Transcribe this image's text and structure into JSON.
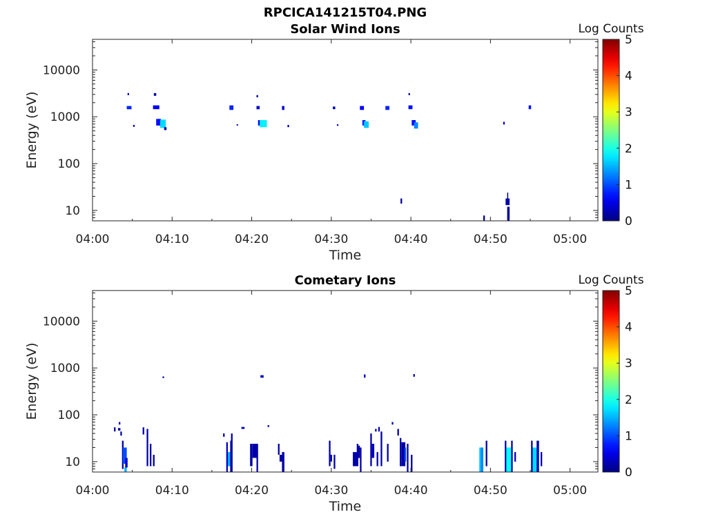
{
  "figure": {
    "title": "RPCICA141215T04.PNG"
  },
  "chart_data": [
    {
      "type": "heatmap",
      "title": "Solar Wind Ions",
      "xlabel": "Time",
      "ylabel": "Energy (eV)",
      "x_unit": "minutes after 04:00",
      "xlim": [
        0,
        63.5
      ],
      "x_ticks": [
        0,
        10,
        20,
        30,
        40,
        50,
        60
      ],
      "x_tick_labels": [
        "04:00",
        "04:10",
        "04:20",
        "04:30",
        "04:40",
        "04:50",
        "05:00"
      ],
      "y_scale": "log",
      "ylim": [
        6,
        45000
      ],
      "y_ticks": [
        10,
        100,
        1000,
        10000
      ],
      "y_tick_labels": [
        "10",
        "100",
        "1000",
        "10000"
      ],
      "colorbar": {
        "label": "Log Counts",
        "range": [
          0,
          5
        ],
        "ticks": [
          "0",
          "1",
          "2",
          "3",
          "4",
          "5"
        ]
      },
      "cells": [
        [
          4.4,
          4.6,
          2900,
          3200,
          0.2
        ],
        [
          4.3,
          4.9,
          1450,
          1700,
          0.8
        ],
        [
          5.1,
          5.3,
          610,
          670,
          0.2
        ],
        [
          7.7,
          8.0,
          2800,
          3200,
          0.2
        ],
        [
          7.6,
          8.4,
          1450,
          1750,
          0.6
        ],
        [
          8.0,
          8.6,
          650,
          900,
          0.7
        ],
        [
          8.5,
          9.2,
          580,
          870,
          1.7
        ],
        [
          9.0,
          9.3,
          520,
          600,
          0.2
        ],
        [
          17.2,
          17.7,
          1400,
          1750,
          0.8
        ],
        [
          18.1,
          18.3,
          650,
          690,
          0.2
        ],
        [
          20.6,
          20.8,
          2600,
          2900,
          0.2
        ],
        [
          20.6,
          21.0,
          1450,
          1700,
          0.4
        ],
        [
          20.8,
          21.2,
          650,
          850,
          0.6
        ],
        [
          21.0,
          21.9,
          600,
          850,
          1.8
        ],
        [
          23.8,
          24.1,
          1400,
          1700,
          0.4
        ],
        [
          24.5,
          24.7,
          600,
          670,
          0.2
        ],
        [
          30.2,
          30.5,
          1450,
          1650,
          0.3
        ],
        [
          30.7,
          30.9,
          640,
          690,
          0.2
        ],
        [
          33.6,
          34.1,
          1400,
          1700,
          0.6
        ],
        [
          33.9,
          34.3,
          650,
          850,
          0.8
        ],
        [
          34.1,
          34.7,
          580,
          800,
          1.6
        ],
        [
          36.8,
          37.3,
          1400,
          1700,
          0.8
        ],
        [
          39.7,
          39.9,
          2900,
          3200,
          0.2
        ],
        [
          39.7,
          40.2,
          1450,
          1750,
          0.7
        ],
        [
          40.1,
          40.6,
          650,
          850,
          0.7
        ],
        [
          40.4,
          40.9,
          560,
          760,
          1.3
        ],
        [
          38.7,
          38.9,
          14,
          18,
          0.1
        ],
        [
          49.1,
          49.3,
          6,
          7.8,
          0.1
        ],
        [
          51.6,
          51.8,
          680,
          780,
          0.4
        ],
        [
          52.1,
          52.2,
          18,
          24,
          0.1
        ],
        [
          51.9,
          52.4,
          13,
          18,
          0.2
        ],
        [
          52.1,
          52.4,
          6,
          12,
          0.1
        ],
        [
          54.8,
          55.1,
          1450,
          1750,
          0.7
        ]
      ]
    },
    {
      "type": "heatmap",
      "title": "Cometary Ions",
      "xlabel": "Time",
      "ylabel": "Energy (eV)",
      "x_unit": "minutes after 04:00",
      "xlim": [
        0,
        63.5
      ],
      "x_ticks": [
        0,
        10,
        20,
        30,
        40,
        50,
        60
      ],
      "x_tick_labels": [
        "04:00",
        "04:10",
        "04:20",
        "04:30",
        "04:40",
        "04:50",
        "05:00"
      ],
      "y_scale": "log",
      "ylim": [
        6,
        45000
      ],
      "y_ticks": [
        10,
        100,
        1000,
        10000
      ],
      "y_tick_labels": [
        "10",
        "100",
        "1000",
        "10000"
      ],
      "colorbar": {
        "label": "Log Counts",
        "range": [
          0,
          5
        ],
        "ticks": [
          "0",
          "1",
          "2",
          "3",
          "4",
          "5"
        ]
      },
      "cells": [
        [
          8.8,
          9.0,
          610,
          660,
          0.2
        ],
        [
          21.1,
          21.5,
          620,
          700,
          0.3
        ],
        [
          34.1,
          34.3,
          620,
          730,
          0.3
        ],
        [
          40.3,
          40.5,
          650,
          740,
          0.2
        ],
        [
          2.7,
          2.9,
          44,
          54,
          0.2
        ],
        [
          3.3,
          3.5,
          62,
          70,
          0.2
        ],
        [
          3.2,
          3.5,
          46,
          52,
          0.2
        ],
        [
          3.5,
          3.7,
          36,
          44,
          0.2
        ],
        [
          3.7,
          3.9,
          7,
          28,
          0.2
        ],
        [
          3.8,
          4.3,
          9,
          20,
          1.0
        ],
        [
          4.0,
          4.3,
          6,
          7.5,
          1.5
        ],
        [
          4.1,
          4.4,
          7.5,
          12,
          0.4
        ],
        [
          6.3,
          6.5,
          38,
          54,
          0.2
        ],
        [
          6.8,
          7.0,
          8,
          50,
          0.2
        ],
        [
          7.2,
          7.4,
          8,
          24,
          0.2
        ],
        [
          7.6,
          7.8,
          8,
          14,
          0.2
        ],
        [
          16.4,
          16.6,
          34,
          40,
          0.2
        ],
        [
          16.8,
          17.0,
          6,
          26,
          0.3
        ],
        [
          17.0,
          17.3,
          8,
          16,
          1.5
        ],
        [
          17.3,
          17.5,
          6,
          28,
          0.2
        ],
        [
          17.4,
          17.6,
          6,
          40,
          0.2
        ],
        [
          18.7,
          19.1,
          50,
          55,
          0.3
        ],
        [
          19.8,
          20.1,
          8,
          24,
          0.2
        ],
        [
          20.1,
          20.6,
          12,
          24,
          0.2
        ],
        [
          20.6,
          20.8,
          6,
          24,
          0.2
        ],
        [
          22.0,
          22.2,
          55,
          60,
          0.2
        ],
        [
          23.3,
          23.5,
          14,
          24,
          0.2
        ],
        [
          23.5,
          24.0,
          10,
          14,
          0.2
        ],
        [
          23.8,
          24.1,
          6,
          16,
          0.2
        ],
        [
          29.7,
          29.9,
          8,
          28,
          0.2
        ],
        [
          29.9,
          30.1,
          10,
          14,
          0.3
        ],
        [
          30.3,
          30.5,
          7,
          14,
          0.2
        ],
        [
          32.7,
          33.3,
          8,
          16,
          0.2
        ],
        [
          33.2,
          33.4,
          8,
          24,
          0.2
        ],
        [
          33.4,
          33.6,
          12,
          22,
          0.2
        ],
        [
          33.6,
          33.8,
          6,
          20,
          0.2
        ],
        [
          34.9,
          35.1,
          8,
          40,
          0.2
        ],
        [
          35.1,
          35.4,
          12,
          24,
          0.3
        ],
        [
          35.5,
          35.7,
          44,
          50,
          0.2
        ],
        [
          35.9,
          36.1,
          44,
          55,
          0.2
        ],
        [
          35.7,
          35.9,
          8,
          16,
          0.2
        ],
        [
          36.2,
          36.4,
          8,
          44,
          0.2
        ],
        [
          37.0,
          37.2,
          10,
          24,
          0.2
        ],
        [
          37.6,
          37.8,
          62,
          70,
          0.2
        ],
        [
          38.3,
          38.5,
          36,
          50,
          0.2
        ],
        [
          38.6,
          38.8,
          8,
          32,
          0.2
        ],
        [
          38.8,
          39.3,
          8,
          26,
          0.2
        ],
        [
          39.2,
          39.4,
          10,
          20,
          1.0
        ],
        [
          39.5,
          39.7,
          6,
          24,
          0.2
        ],
        [
          40.0,
          40.2,
          6,
          14,
          0.2
        ],
        [
          48.6,
          48.8,
          6,
          20,
          1.6
        ],
        [
          48.8,
          49.1,
          6,
          20,
          1.3
        ],
        [
          49.4,
          49.6,
          8,
          28,
          0.2
        ],
        [
          51.8,
          52.0,
          6,
          28,
          0.2
        ],
        [
          52.0,
          52.6,
          6,
          20,
          1.9
        ],
        [
          52.6,
          52.8,
          6,
          28,
          0.2
        ],
        [
          53.0,
          53.2,
          10,
          16,
          0.3
        ],
        [
          55.1,
          55.3,
          6,
          28,
          0.2
        ],
        [
          55.3,
          55.8,
          6,
          20,
          1.7
        ],
        [
          55.8,
          56.1,
          6,
          28,
          0.2
        ],
        [
          56.3,
          56.5,
          8,
          16,
          0.2
        ]
      ]
    }
  ]
}
